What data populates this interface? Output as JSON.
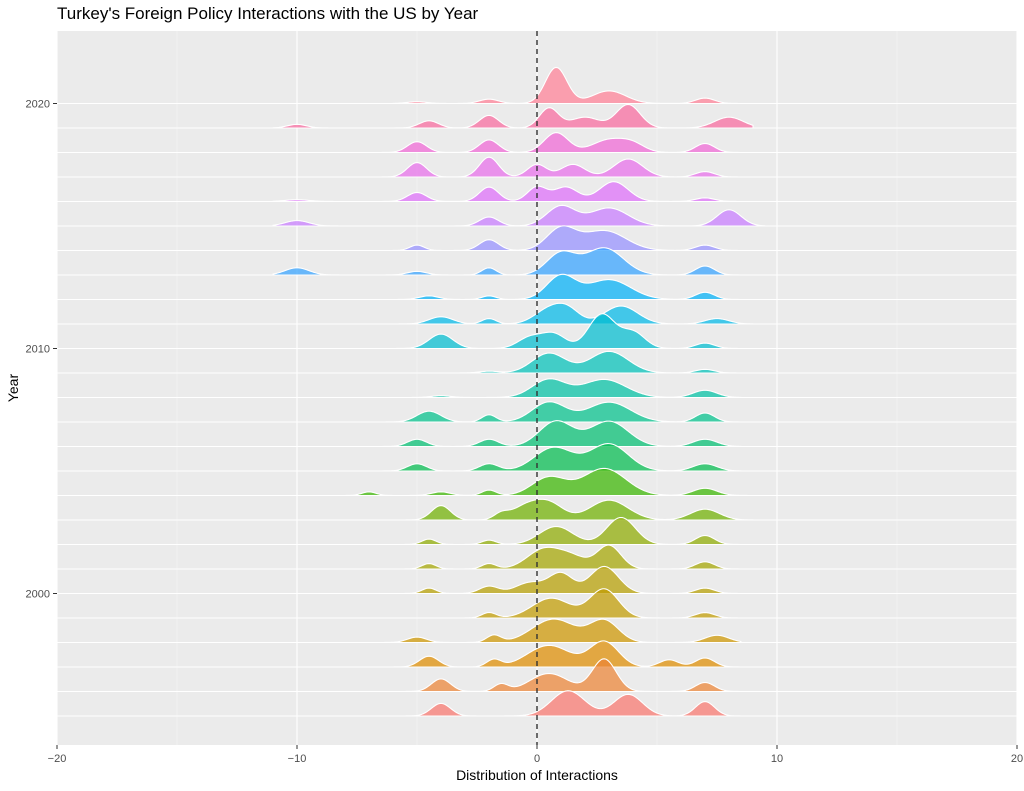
{
  "chart_data": {
    "type": "ridgeline",
    "title": "Turkey's Foreign Policy Interactions with the US by Year",
    "xlabel": "Distribution of Interactions",
    "ylabel": "Year",
    "xlim": [
      -20,
      20
    ],
    "x_ticks": [
      -20,
      -10,
      0,
      10,
      20
    ],
    "x_tick_labels": [
      "−20",
      "−10",
      "0",
      "10",
      "20"
    ],
    "y_ticks": [
      2000,
      2010,
      2020
    ],
    "y_tick_labels": [
      "2000",
      "2010",
      "2020"
    ],
    "reference_line_x": 0,
    "grid": true,
    "legend": "none",
    "series": [
      {
        "year": 1995,
        "color": "#F8766D",
        "peaks": [
          [
            1.3,
            0.7,
            0.7
          ],
          [
            3.8,
            0.6,
            0.6
          ],
          [
            -4,
            0.4,
            0.35
          ],
          [
            7,
            0.4,
            0.4
          ]
        ],
        "range": [
          -6.5,
          8.5
        ]
      },
      {
        "year": 1996,
        "color": "#EB8335",
        "peaks": [
          [
            0.5,
            0.8,
            0.5
          ],
          [
            2.8,
            0.5,
            0.9
          ],
          [
            -4,
            0.4,
            0.35
          ],
          [
            -1.5,
            0.3,
            0.2
          ],
          [
            7,
            0.4,
            0.25
          ]
        ],
        "range": [
          -6,
          8.5
        ]
      },
      {
        "year": 1997,
        "color": "#DE8C00",
        "peaks": [
          [
            0.5,
            0.9,
            0.6
          ],
          [
            2.8,
            0.6,
            0.7
          ],
          [
            -4.5,
            0.4,
            0.3
          ],
          [
            -1.8,
            0.3,
            0.2
          ],
          [
            5.5,
            0.4,
            0.2
          ],
          [
            7,
            0.4,
            0.25
          ]
        ],
        "range": [
          -7,
          9
        ]
      },
      {
        "year": 1998,
        "color": "#CD9600",
        "peaks": [
          [
            0.7,
            0.9,
            0.65
          ],
          [
            2.8,
            0.6,
            0.6
          ],
          [
            -5,
            0.4,
            0.15
          ],
          [
            -1.8,
            0.3,
            0.2
          ],
          [
            7.5,
            0.5,
            0.2
          ]
        ],
        "range": [
          -6.5,
          8.5
        ]
      },
      {
        "year": 1999,
        "color": "#C09B00",
        "peaks": [
          [
            0.6,
            0.8,
            0.55
          ],
          [
            2.8,
            0.6,
            0.8
          ],
          [
            -2,
            0.3,
            0.15
          ],
          [
            7,
            0.4,
            0.15
          ]
        ],
        "range": [
          -6,
          8.5
        ]
      },
      {
        "year": 2000,
        "color": "#B59E00",
        "peaks": [
          [
            -0.3,
            0.6,
            0.3
          ],
          [
            1,
            0.5,
            0.55
          ],
          [
            2.8,
            0.6,
            0.75
          ],
          [
            -4.5,
            0.3,
            0.15
          ],
          [
            -2,
            0.4,
            0.2
          ],
          [
            7,
            0.4,
            0.15
          ]
        ],
        "range": [
          -7,
          8.5
        ]
      },
      {
        "year": 2001,
        "color": "#A3A500",
        "peaks": [
          [
            0.3,
            0.7,
            0.55
          ],
          [
            1.5,
            0.6,
            0.3
          ],
          [
            3,
            0.5,
            0.65
          ],
          [
            -4.5,
            0.3,
            0.15
          ],
          [
            -2,
            0.3,
            0.15
          ],
          [
            7,
            0.4,
            0.2
          ]
        ],
        "range": [
          -7,
          8.5
        ]
      },
      {
        "year": 2002,
        "color": "#8EAB00",
        "peaks": [
          [
            0.8,
            0.7,
            0.5
          ],
          [
            3.5,
            0.6,
            0.75
          ],
          [
            -4.5,
            0.3,
            0.15
          ],
          [
            -2,
            0.3,
            0.12
          ],
          [
            7,
            0.4,
            0.25
          ]
        ],
        "range": [
          -6.5,
          9
        ]
      },
      {
        "year": 2003,
        "color": "#6FB000",
        "peaks": [
          [
            -0.5,
            0.6,
            0.35
          ],
          [
            0.5,
            0.6,
            0.45
          ],
          [
            3,
            0.8,
            0.55
          ],
          [
            -4,
            0.4,
            0.4
          ],
          [
            -1.5,
            0.3,
            0.15
          ],
          [
            7,
            0.6,
            0.3
          ]
        ],
        "range": [
          -8,
          9
        ]
      },
      {
        "year": 2004,
        "color": "#39B600",
        "peaks": [
          [
            0.5,
            0.7,
            0.5
          ],
          [
            2.8,
            0.9,
            0.75
          ],
          [
            -7,
            0.3,
            0.1
          ],
          [
            -4,
            0.4,
            0.1
          ],
          [
            -2,
            0.3,
            0.15
          ],
          [
            7,
            0.5,
            0.2
          ]
        ],
        "range": [
          -8,
          9
        ]
      },
      {
        "year": 2005,
        "color": "#00BB4E",
        "peaks": [
          [
            0.7,
            0.8,
            0.65
          ],
          [
            3,
            0.8,
            0.75
          ],
          [
            -5,
            0.4,
            0.2
          ],
          [
            -2,
            0.4,
            0.2
          ],
          [
            7,
            0.5,
            0.2
          ]
        ],
        "range": [
          -7,
          8.5
        ]
      },
      {
        "year": 2006,
        "color": "#00BE70",
        "peaks": [
          [
            0.8,
            0.7,
            0.7
          ],
          [
            3,
            0.8,
            0.7
          ],
          [
            -5,
            0.4,
            0.2
          ],
          [
            -2,
            0.4,
            0.2
          ],
          [
            7,
            0.5,
            0.2
          ]
        ],
        "range": [
          -7,
          8.5
        ]
      },
      {
        "year": 2007,
        "color": "#00C08B",
        "peaks": [
          [
            0.5,
            0.7,
            0.55
          ],
          [
            3,
            0.9,
            0.55
          ],
          [
            -4.5,
            0.5,
            0.3
          ],
          [
            -2,
            0.3,
            0.2
          ],
          [
            7,
            0.4,
            0.25
          ]
        ],
        "range": [
          -7,
          8.5
        ]
      },
      {
        "year": 2008,
        "color": "#00C1A3",
        "peaks": [
          [
            0.5,
            0.7,
            0.5
          ],
          [
            2.8,
            0.9,
            0.5
          ],
          [
            -4,
            0.4,
            0.05
          ],
          [
            7,
            0.5,
            0.2
          ]
        ],
        "range": [
          -9,
          8.5
        ]
      },
      {
        "year": 2009,
        "color": "#00C0B8",
        "peaks": [
          [
            0.5,
            0.7,
            0.55
          ],
          [
            3,
            0.8,
            0.6
          ],
          [
            -2,
            0.4,
            0.05
          ],
          [
            7,
            0.4,
            0.1
          ]
        ],
        "range": [
          -7,
          8.5
        ]
      },
      {
        "year": 2010,
        "color": "#00BDD0",
        "peaks": [
          [
            -0.3,
            0.5,
            0.3
          ],
          [
            0.7,
            0.5,
            0.4
          ],
          [
            2.7,
            0.55,
            0.95
          ],
          [
            4,
            0.5,
            0.45
          ],
          [
            -4,
            0.5,
            0.4
          ],
          [
            7,
            0.4,
            0.15
          ]
        ],
        "range": [
          -6,
          8.5
        ]
      },
      {
        "year": 2011,
        "color": "#00B8E7",
        "peaks": [
          [
            0.5,
            0.6,
            0.4
          ],
          [
            1.3,
            0.5,
            0.35
          ],
          [
            3.5,
            0.7,
            0.5
          ],
          [
            -4,
            0.5,
            0.2
          ],
          [
            -2,
            0.3,
            0.15
          ],
          [
            7.5,
            0.5,
            0.15
          ]
        ],
        "range": [
          -8,
          9
        ]
      },
      {
        "year": 2012,
        "color": "#00B0F6",
        "peaks": [
          [
            1,
            0.6,
            0.65
          ],
          [
            3,
            0.9,
            0.55
          ],
          [
            -4.5,
            0.4,
            0.1
          ],
          [
            -2,
            0.3,
            0.1
          ],
          [
            7,
            0.4,
            0.2
          ]
        ],
        "range": [
          -7,
          8.5
        ]
      },
      {
        "year": 2013,
        "color": "#35A2FF",
        "peaks": [
          [
            1,
            0.6,
            0.6
          ],
          [
            2.8,
            0.8,
            0.75
          ],
          [
            -10,
            0.5,
            0.2
          ],
          [
            -5,
            0.4,
            0.1
          ],
          [
            -2,
            0.3,
            0.2
          ],
          [
            7,
            0.4,
            0.25
          ]
        ],
        "range": [
          -11,
          8.5
        ]
      },
      {
        "year": 2014,
        "color": "#9590FF",
        "peaks": [
          [
            1,
            0.6,
            0.6
          ],
          [
            2.8,
            0.9,
            0.55
          ],
          [
            -5,
            0.3,
            0.15
          ],
          [
            -2,
            0.4,
            0.3
          ],
          [
            7,
            0.4,
            0.15
          ]
        ],
        "range": [
          -10,
          8.5
        ]
      },
      {
        "year": 2015,
        "color": "#C77CFF",
        "peaks": [
          [
            1,
            0.6,
            0.55
          ],
          [
            3,
            0.8,
            0.5
          ],
          [
            -10,
            0.5,
            0.15
          ],
          [
            -2,
            0.4,
            0.25
          ],
          [
            8,
            0.5,
            0.45
          ]
        ],
        "range": [
          -11,
          9.5
        ]
      },
      {
        "year": 2016,
        "color": "#DE6DFA",
        "peaks": [
          [
            -2,
            0.4,
            0.4
          ],
          [
            0,
            0.4,
            0.4
          ],
          [
            1.2,
            0.5,
            0.4
          ],
          [
            3.2,
            0.6,
            0.55
          ],
          [
            -5,
            0.4,
            0.25
          ],
          [
            -10,
            0.5,
            0.05
          ],
          [
            7,
            0.4,
            0.1
          ]
        ],
        "range": [
          -11,
          8.5
        ]
      },
      {
        "year": 2017,
        "color": "#E86EEA",
        "peaks": [
          [
            -2,
            0.4,
            0.55
          ],
          [
            -5,
            0.4,
            0.4
          ],
          [
            0,
            0.4,
            0.35
          ],
          [
            1.5,
            0.5,
            0.35
          ],
          [
            3.8,
            0.6,
            0.5
          ],
          [
            7,
            0.4,
            0.15
          ]
        ],
        "range": [
          -8,
          8.5
        ]
      },
      {
        "year": 2018,
        "color": "#F066D6",
        "peaks": [
          [
            -2,
            0.4,
            0.35
          ],
          [
            -5,
            0.4,
            0.3
          ],
          [
            0.8,
            0.5,
            0.55
          ],
          [
            3,
            0.7,
            0.35
          ],
          [
            4,
            0.5,
            0.2
          ],
          [
            7,
            0.4,
            0.25
          ]
        ],
        "range": [
          -8,
          9
        ]
      },
      {
        "year": 2019,
        "color": "#F8699E",
        "peaks": [
          [
            -2,
            0.4,
            0.35
          ],
          [
            -4.5,
            0.4,
            0.2
          ],
          [
            -10,
            0.4,
            0.1
          ],
          [
            0.5,
            0.4,
            0.55
          ],
          [
            2,
            0.6,
            0.3
          ],
          [
            3.8,
            0.5,
            0.65
          ],
          [
            8,
            0.6,
            0.3
          ]
        ],
        "range": [
          -11,
          9
        ]
      },
      {
        "year": 2020,
        "color": "#FF8095",
        "peaks": [
          [
            0.8,
            0.45,
            1.0
          ],
          [
            3,
            0.7,
            0.35
          ],
          [
            -2,
            0.4,
            0.12
          ],
          [
            -5,
            0.4,
            0.05
          ],
          [
            7,
            0.4,
            0.15
          ]
        ],
        "range": [
          -6,
          8.5
        ]
      }
    ]
  }
}
